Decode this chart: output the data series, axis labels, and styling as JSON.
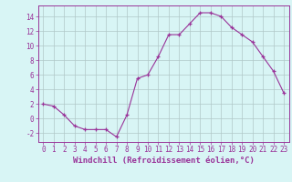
{
  "x": [
    0,
    1,
    2,
    3,
    4,
    5,
    6,
    7,
    8,
    9,
    10,
    11,
    12,
    13,
    14,
    15,
    16,
    17,
    18,
    19,
    20,
    21,
    22,
    23
  ],
  "y": [
    2.0,
    1.7,
    0.5,
    -1.0,
    -1.5,
    -1.5,
    -1.5,
    -2.5,
    0.5,
    5.5,
    6.0,
    8.5,
    11.5,
    11.5,
    13.0,
    14.5,
    14.5,
    14.0,
    12.5,
    11.5,
    10.5,
    8.5,
    6.5,
    3.5
  ],
  "line_color": "#993399",
  "marker": "+",
  "marker_color": "#993399",
  "bg_color": "#d8f5f5",
  "grid_color": "#b0c8c8",
  "tick_color": "#993399",
  "xlabel": "Windchill (Refroidissement éolien,°C)",
  "xlabel_color": "#993399",
  "xlim": [
    -0.5,
    23.5
  ],
  "ylim": [
    -3.2,
    15.5
  ],
  "yticks": [
    -2,
    0,
    2,
    4,
    6,
    8,
    10,
    12,
    14
  ],
  "xticks": [
    0,
    1,
    2,
    3,
    4,
    5,
    6,
    7,
    8,
    9,
    10,
    11,
    12,
    13,
    14,
    15,
    16,
    17,
    18,
    19,
    20,
    21,
    22,
    23
  ],
  "tick_fontsize": 5.5,
  "xlabel_fontsize": 6.5
}
